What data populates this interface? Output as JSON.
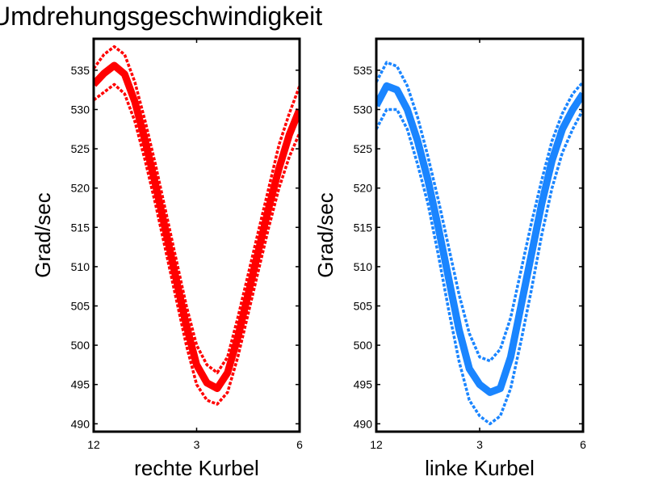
{
  "title": "Umdrehungsgeschwindigkeit",
  "chart_data": [
    {
      "type": "line",
      "xlabel": "rechte Kurbel",
      "ylabel": "Grad/sec",
      "xticks": [
        "12",
        "3",
        "6"
      ],
      "xlim": [
        0,
        1
      ],
      "xtick_values": [
        0,
        0.5,
        1
      ],
      "yticks": [
        490,
        495,
        500,
        505,
        510,
        515,
        520,
        525,
        530,
        535
      ],
      "ylim": [
        489,
        539
      ],
      "grid": false,
      "color": "#ff0000",
      "x": [
        0,
        0.05,
        0.1,
        0.15,
        0.2,
        0.25,
        0.3,
        0.35,
        0.4,
        0.45,
        0.5,
        0.55,
        0.6,
        0.65,
        0.7,
        0.75,
        0.8,
        0.85,
        0.9,
        0.95,
        1.0
      ],
      "series": [
        {
          "style": "mean",
          "values": [
            533.2,
            534.6,
            535.6,
            534.5,
            531.0,
            526.0,
            520.5,
            514.5,
            508.5,
            502.5,
            497.5,
            495.2,
            494.5,
            496.5,
            501.0,
            506.5,
            512.0,
            517.5,
            522.5,
            526.8,
            530.0
          ]
        },
        {
          "style": "upper",
          "values": [
            535.2,
            537.0,
            538.0,
            537.0,
            533.5,
            528.5,
            523.0,
            517.0,
            511.0,
            505.0,
            500.0,
            497.5,
            496.5,
            498.5,
            503.5,
            509.0,
            514.5,
            520.0,
            525.5,
            529.5,
            533.0
          ]
        },
        {
          "style": "lower",
          "values": [
            531.2,
            532.2,
            533.2,
            532.0,
            528.5,
            523.5,
            518.0,
            512.0,
            506.0,
            500.0,
            495.0,
            493.0,
            492.5,
            494.0,
            498.5,
            504.0,
            509.5,
            515.0,
            520.0,
            524.0,
            527.0
          ]
        }
      ]
    },
    {
      "type": "line",
      "xlabel": "linke Kurbel",
      "ylabel": "Grad/sec",
      "xticks": [
        "12",
        "3",
        "6"
      ],
      "xlim": [
        0,
        1
      ],
      "xtick_values": [
        0,
        0.5,
        1
      ],
      "yticks": [
        490,
        495,
        500,
        505,
        510,
        515,
        520,
        525,
        530,
        535
      ],
      "ylim": [
        489,
        539
      ],
      "grid": false,
      "color": "#1a85ff",
      "x": [
        0,
        0.05,
        0.1,
        0.15,
        0.2,
        0.25,
        0.3,
        0.35,
        0.4,
        0.45,
        0.5,
        0.55,
        0.6,
        0.65,
        0.7,
        0.75,
        0.8,
        0.85,
        0.9,
        0.95,
        1.0
      ],
      "series": [
        {
          "style": "mean",
          "values": [
            530.5,
            533.0,
            532.5,
            530.0,
            526.0,
            521.0,
            515.0,
            508.5,
            502.0,
            497.0,
            495.0,
            494.0,
            494.5,
            498.5,
            505.0,
            511.5,
            518.0,
            523.5,
            527.5,
            530.0,
            532.0
          ]
        },
        {
          "style": "upper",
          "values": [
            533.5,
            536.0,
            535.5,
            533.0,
            529.0,
            524.0,
            518.5,
            512.5,
            506.5,
            501.5,
            498.5,
            498.0,
            499.5,
            503.5,
            509.5,
            515.5,
            521.0,
            526.0,
            529.5,
            532.0,
            533.5
          ]
        },
        {
          "style": "lower",
          "values": [
            527.5,
            530.0,
            530.0,
            527.5,
            523.0,
            518.0,
            511.5,
            504.5,
            498.0,
            493.0,
            491.0,
            490.0,
            491.0,
            494.5,
            500.5,
            507.0,
            514.0,
            520.0,
            524.5,
            527.5,
            530.0
          ]
        }
      ]
    }
  ]
}
